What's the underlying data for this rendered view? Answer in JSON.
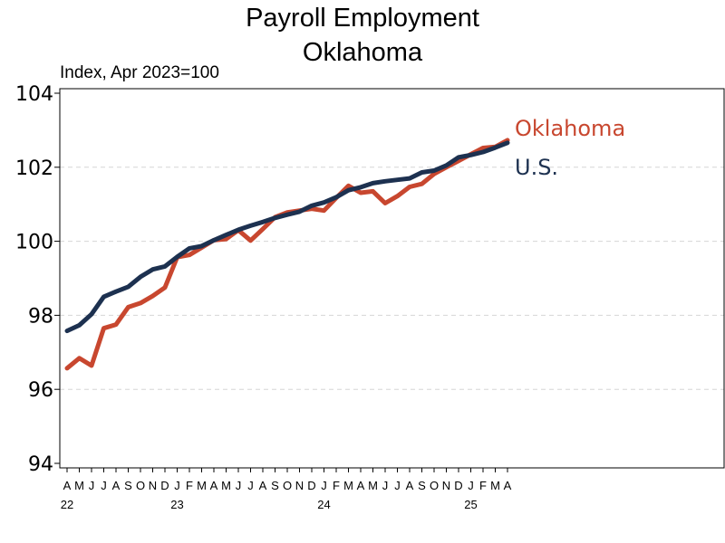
{
  "chart_data": {
    "type": "line",
    "title": "Payroll Employment",
    "subtitle": "Oklahoma",
    "ylabel": "Index, Apr 2023=100",
    "xlabel": "",
    "ylim": [
      94,
      104
    ],
    "yticks": [
      "94",
      "96",
      "98",
      "100",
      "102",
      "104"
    ],
    "grid": "horizontal dashed",
    "month_labels": [
      "A",
      "M",
      "J",
      "J",
      "A",
      "S",
      "O",
      "N",
      "D",
      "J",
      "F",
      "M",
      "A",
      "M",
      "J",
      "J",
      "A",
      "S",
      "O",
      "N",
      "D",
      "J",
      "F",
      "M",
      "A",
      "M",
      "J",
      "J",
      "A",
      "S",
      "O",
      "N",
      "D",
      "J",
      "F",
      "M",
      "A"
    ],
    "year_labels": [
      {
        "index": 0,
        "label": "22"
      },
      {
        "index": 9,
        "label": "23"
      },
      {
        "index": 21,
        "label": "24"
      },
      {
        "index": 33,
        "label": "25"
      }
    ],
    "x": [
      "2022-04",
      "2022-05",
      "2022-06",
      "2022-07",
      "2022-08",
      "2022-09",
      "2022-10",
      "2022-11",
      "2022-12",
      "2023-01",
      "2023-02",
      "2023-03",
      "2023-04",
      "2023-05",
      "2023-06",
      "2023-07",
      "2023-08",
      "2023-09",
      "2023-10",
      "2023-11",
      "2023-12",
      "2024-01",
      "2024-02",
      "2024-03",
      "2024-04",
      "2024-05",
      "2024-06",
      "2024-07",
      "2024-08",
      "2024-09",
      "2024-10",
      "2024-11",
      "2024-12",
      "2025-01",
      "2025-02",
      "2025-03",
      "2025-04"
    ],
    "series": [
      {
        "name": "Oklahoma",
        "color": "#c8472f",
        "values": [
          96.57,
          96.84,
          96.64,
          97.65,
          97.75,
          98.22,
          98.33,
          98.52,
          98.75,
          99.57,
          99.63,
          99.83,
          100.03,
          100.06,
          100.3,
          100.02,
          100.33,
          100.65,
          100.78,
          100.83,
          100.88,
          100.83,
          101.17,
          101.5,
          101.31,
          101.35,
          101.03,
          101.22,
          101.47,
          101.55,
          101.82,
          102.0,
          102.17,
          102.35,
          102.52,
          102.55,
          102.73
        ]
      },
      {
        "name": "U.S.",
        "color": "#1d3150",
        "values": [
          97.58,
          97.73,
          98.03,
          98.5,
          98.64,
          98.77,
          99.04,
          99.24,
          99.32,
          99.58,
          99.81,
          99.87,
          100.03,
          100.17,
          100.31,
          100.42,
          100.52,
          100.63,
          100.72,
          100.8,
          100.96,
          101.05,
          101.19,
          101.38,
          101.46,
          101.57,
          101.62,
          101.66,
          101.7,
          101.86,
          101.91,
          102.05,
          102.27,
          102.33,
          102.41,
          102.53,
          102.66
        ]
      }
    ]
  }
}
